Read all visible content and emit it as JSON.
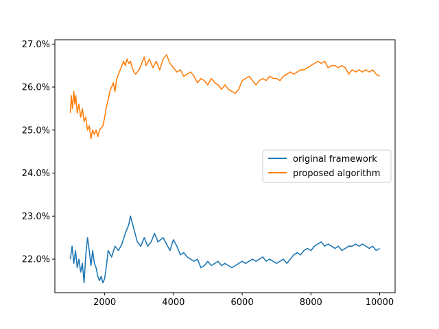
{
  "chart_data": {
    "type": "line",
    "title": "",
    "xlabel": "",
    "ylabel": "",
    "xlim": [
      550,
      10450
    ],
    "ylim": [
      21.22,
      27.1
    ],
    "x_ticks": [
      2000,
      4000,
      6000,
      8000,
      10000
    ],
    "x_tick_labels": [
      "2000",
      "4000",
      "6000",
      "8000",
      "10000"
    ],
    "y_ticks": [
      22,
      23,
      24,
      25,
      26,
      27
    ],
    "y_tick_labels": [
      "22.0%",
      "23.0%",
      "24.0%",
      "25.0%",
      "26.0%",
      "27.0%"
    ],
    "grid": false,
    "legend_position": "center-right",
    "series": [
      {
        "name": "original framework",
        "color": "#1f77b4",
        "points": [
          [
            1000,
            22.0
          ],
          [
            1050,
            22.3
          ],
          [
            1100,
            21.9
          ],
          [
            1150,
            22.2
          ],
          [
            1200,
            21.8
          ],
          [
            1250,
            22.0
          ],
          [
            1300,
            21.7
          ],
          [
            1350,
            21.9
          ],
          [
            1400,
            21.45
          ],
          [
            1450,
            22.1
          ],
          [
            1500,
            22.5
          ],
          [
            1550,
            22.2
          ],
          [
            1600,
            21.85
          ],
          [
            1650,
            22.2
          ],
          [
            1700,
            21.9
          ],
          [
            1750,
            21.8
          ],
          [
            1800,
            21.6
          ],
          [
            1850,
            21.5
          ],
          [
            1900,
            21.6
          ],
          [
            1950,
            21.45
          ],
          [
            2000,
            21.55
          ],
          [
            2050,
            21.85
          ],
          [
            2100,
            22.2
          ],
          [
            2200,
            22.05
          ],
          [
            2300,
            22.3
          ],
          [
            2400,
            22.2
          ],
          [
            2500,
            22.35
          ],
          [
            2600,
            22.6
          ],
          [
            2700,
            22.8
          ],
          [
            2750,
            23.0
          ],
          [
            2850,
            22.7
          ],
          [
            2950,
            22.4
          ],
          [
            3050,
            22.3
          ],
          [
            3150,
            22.5
          ],
          [
            3250,
            22.3
          ],
          [
            3350,
            22.4
          ],
          [
            3450,
            22.6
          ],
          [
            3550,
            22.4
          ],
          [
            3700,
            22.5
          ],
          [
            3800,
            22.35
          ],
          [
            3900,
            22.2
          ],
          [
            4000,
            22.45
          ],
          [
            4100,
            22.3
          ],
          [
            4200,
            22.1
          ],
          [
            4300,
            22.15
          ],
          [
            4400,
            22.05
          ],
          [
            4500,
            22.0
          ],
          [
            4600,
            21.95
          ],
          [
            4700,
            22.0
          ],
          [
            4800,
            21.8
          ],
          [
            4900,
            21.85
          ],
          [
            5000,
            21.95
          ],
          [
            5100,
            21.85
          ],
          [
            5200,
            21.9
          ],
          [
            5300,
            21.95
          ],
          [
            5400,
            21.85
          ],
          [
            5500,
            21.9
          ],
          [
            5600,
            21.85
          ],
          [
            5700,
            21.8
          ],
          [
            5800,
            21.85
          ],
          [
            5900,
            21.9
          ],
          [
            6000,
            21.95
          ],
          [
            6100,
            21.9
          ],
          [
            6200,
            21.95
          ],
          [
            6300,
            22.0
          ],
          [
            6400,
            21.95
          ],
          [
            6500,
            22.0
          ],
          [
            6600,
            22.05
          ],
          [
            6700,
            21.95
          ],
          [
            6800,
            22.0
          ],
          [
            6900,
            21.95
          ],
          [
            7000,
            21.9
          ],
          [
            7100,
            21.95
          ],
          [
            7200,
            22.0
          ],
          [
            7300,
            21.9
          ],
          [
            7400,
            22.0
          ],
          [
            7500,
            22.1
          ],
          [
            7600,
            22.15
          ],
          [
            7700,
            22.1
          ],
          [
            7800,
            22.2
          ],
          [
            7900,
            22.25
          ],
          [
            8000,
            22.2
          ],
          [
            8100,
            22.3
          ],
          [
            8200,
            22.35
          ],
          [
            8300,
            22.4
          ],
          [
            8400,
            22.3
          ],
          [
            8500,
            22.35
          ],
          [
            8600,
            22.3
          ],
          [
            8700,
            22.25
          ],
          [
            8800,
            22.3
          ],
          [
            8900,
            22.2
          ],
          [
            9000,
            22.25
          ],
          [
            9100,
            22.3
          ],
          [
            9200,
            22.3
          ],
          [
            9300,
            22.35
          ],
          [
            9400,
            22.3
          ],
          [
            9500,
            22.35
          ],
          [
            9600,
            22.3
          ],
          [
            9700,
            22.25
          ],
          [
            9800,
            22.3
          ],
          [
            9900,
            22.2
          ],
          [
            10000,
            22.25
          ]
        ]
      },
      {
        "name": "proposed algorithm",
        "color": "#ff7f0e",
        "points": [
          [
            1000,
            25.4
          ],
          [
            1030,
            25.8
          ],
          [
            1060,
            25.5
          ],
          [
            1100,
            25.9
          ],
          [
            1130,
            25.6
          ],
          [
            1160,
            25.8
          ],
          [
            1200,
            25.4
          ],
          [
            1250,
            25.6
          ],
          [
            1300,
            25.3
          ],
          [
            1350,
            25.5
          ],
          [
            1400,
            25.2
          ],
          [
            1450,
            25.3
          ],
          [
            1500,
            25.0
          ],
          [
            1550,
            25.1
          ],
          [
            1600,
            24.8
          ],
          [
            1650,
            25.0
          ],
          [
            1700,
            24.9
          ],
          [
            1750,
            25.0
          ],
          [
            1800,
            24.85
          ],
          [
            1850,
            25.0
          ],
          [
            1900,
            25.05
          ],
          [
            1950,
            25.1
          ],
          [
            2000,
            25.3
          ],
          [
            2050,
            25.55
          ],
          [
            2100,
            25.7
          ],
          [
            2150,
            25.9
          ],
          [
            2200,
            26.0
          ],
          [
            2250,
            26.1
          ],
          [
            2300,
            25.9
          ],
          [
            2350,
            26.2
          ],
          [
            2400,
            26.3
          ],
          [
            2450,
            26.4
          ],
          [
            2500,
            26.5
          ],
          [
            2550,
            26.6
          ],
          [
            2600,
            26.5
          ],
          [
            2650,
            26.65
          ],
          [
            2700,
            26.55
          ],
          [
            2750,
            26.6
          ],
          [
            2800,
            26.45
          ],
          [
            2850,
            26.35
          ],
          [
            2900,
            26.3
          ],
          [
            3000,
            26.4
          ],
          [
            3100,
            26.6
          ],
          [
            3150,
            26.7
          ],
          [
            3200,
            26.5
          ],
          [
            3300,
            26.65
          ],
          [
            3400,
            26.45
          ],
          [
            3500,
            26.6
          ],
          [
            3600,
            26.4
          ],
          [
            3700,
            26.65
          ],
          [
            3800,
            26.75
          ],
          [
            3900,
            26.55
          ],
          [
            4000,
            26.45
          ],
          [
            4100,
            26.35
          ],
          [
            4200,
            26.4
          ],
          [
            4300,
            26.25
          ],
          [
            4400,
            26.3
          ],
          [
            4500,
            26.35
          ],
          [
            4600,
            26.25
          ],
          [
            4700,
            26.1
          ],
          [
            4800,
            26.2
          ],
          [
            4900,
            26.15
          ],
          [
            5000,
            26.05
          ],
          [
            5100,
            26.2
          ],
          [
            5200,
            26.1
          ],
          [
            5300,
            26.05
          ],
          [
            5400,
            25.95
          ],
          [
            5500,
            26.05
          ],
          [
            5600,
            25.95
          ],
          [
            5700,
            25.9
          ],
          [
            5800,
            25.85
          ],
          [
            5900,
            25.95
          ],
          [
            6000,
            26.15
          ],
          [
            6100,
            26.2
          ],
          [
            6200,
            26.25
          ],
          [
            6300,
            26.15
          ],
          [
            6400,
            26.05
          ],
          [
            6500,
            26.15
          ],
          [
            6600,
            26.2
          ],
          [
            6700,
            26.15
          ],
          [
            6800,
            26.25
          ],
          [
            6900,
            26.2
          ],
          [
            7000,
            26.2
          ],
          [
            7100,
            26.15
          ],
          [
            7200,
            26.25
          ],
          [
            7300,
            26.3
          ],
          [
            7400,
            26.35
          ],
          [
            7500,
            26.3
          ],
          [
            7600,
            26.35
          ],
          [
            7700,
            26.4
          ],
          [
            7800,
            26.4
          ],
          [
            7900,
            26.45
          ],
          [
            8000,
            26.5
          ],
          [
            8100,
            26.55
          ],
          [
            8200,
            26.6
          ],
          [
            8300,
            26.55
          ],
          [
            8400,
            26.6
          ],
          [
            8500,
            26.45
          ],
          [
            8600,
            26.5
          ],
          [
            8700,
            26.5
          ],
          [
            8800,
            26.45
          ],
          [
            8900,
            26.5
          ],
          [
            9000,
            26.45
          ],
          [
            9100,
            26.3
          ],
          [
            9200,
            26.4
          ],
          [
            9300,
            26.35
          ],
          [
            9400,
            26.4
          ],
          [
            9500,
            26.35
          ],
          [
            9600,
            26.4
          ],
          [
            9700,
            26.35
          ],
          [
            9800,
            26.4
          ],
          [
            9900,
            26.3
          ],
          [
            10000,
            26.25
          ]
        ]
      }
    ]
  }
}
